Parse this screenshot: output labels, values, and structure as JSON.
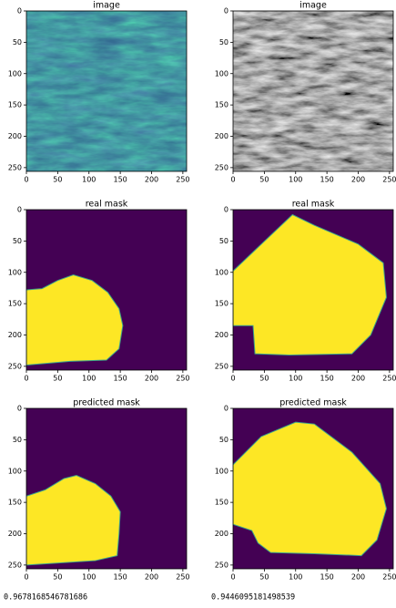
{
  "chart_data": [
    {
      "type": "image",
      "title": "image",
      "colormap": "viridis",
      "xlim": [
        0,
        256
      ],
      "ylim": [
        256,
        0
      ],
      "xticks": [
        0,
        50,
        100,
        150,
        200,
        250
      ],
      "yticks": [
        0,
        50,
        100,
        150,
        200,
        250
      ]
    },
    {
      "type": "image",
      "title": "image",
      "colormap": "gray",
      "xlim": [
        0,
        256
      ],
      "ylim": [
        256,
        0
      ],
      "xticks": [
        0,
        50,
        100,
        150,
        200,
        250
      ],
      "yticks": [
        0,
        50,
        100,
        150,
        200,
        250
      ]
    },
    {
      "type": "mask",
      "title": "real mask",
      "xlim": [
        0,
        256
      ],
      "ylim": [
        256,
        0
      ],
      "xticks": [
        0,
        50,
        100,
        150,
        200,
        250
      ],
      "yticks": [
        0,
        50,
        100,
        150,
        200,
        250
      ]
    },
    {
      "type": "mask",
      "title": "real mask",
      "xlim": [
        0,
        256
      ],
      "ylim": [
        256,
        0
      ],
      "xticks": [
        0,
        50,
        100,
        150,
        200,
        250
      ],
      "yticks": [
        0,
        50,
        100,
        150,
        200,
        250
      ]
    },
    {
      "type": "mask",
      "title": "predicted mask",
      "xlim": [
        0,
        256
      ],
      "ylim": [
        256,
        0
      ],
      "xticks": [
        0,
        50,
        100,
        150,
        200,
        250
      ],
      "yticks": [
        0,
        50,
        100,
        150,
        200,
        250
      ]
    },
    {
      "type": "mask",
      "title": "predicted mask",
      "xlim": [
        0,
        256
      ],
      "ylim": [
        256,
        0
      ],
      "xticks": [
        0,
        50,
        100,
        150,
        200,
        250
      ],
      "yticks": [
        0,
        50,
        100,
        150,
        200,
        250
      ]
    }
  ],
  "printed_outputs": [
    "0.9678168546781686",
    "0.9446095181498539"
  ]
}
